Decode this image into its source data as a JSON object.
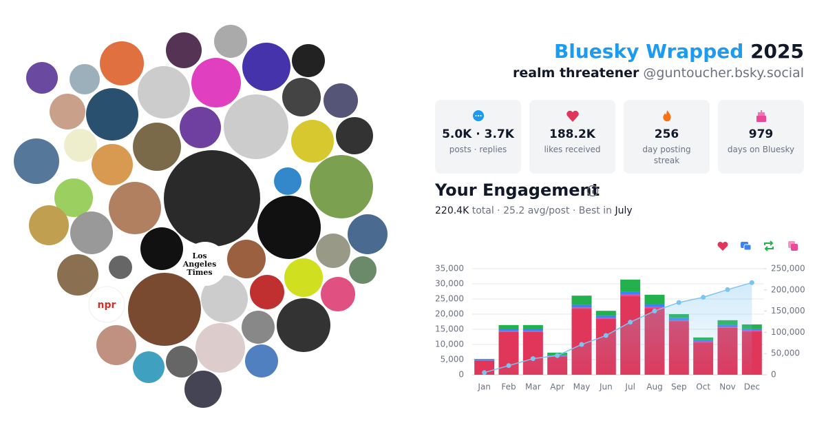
{
  "header": {
    "title": "Bluesky Wrapped",
    "year": "2025",
    "display_name": "realm threatener",
    "handle": "@guntoucher.bsky.social"
  },
  "avatars": {
    "logos": [
      "npr",
      "Los",
      "Angeles",
      "Times"
    ]
  },
  "stats": [
    {
      "value": "5.0K · 3.7K",
      "label": "posts · replies"
    },
    {
      "value": "188.2K",
      "label": "likes received"
    },
    {
      "value": "256",
      "label": "day posting streak"
    },
    {
      "value": "979",
      "label": "days on Bluesky"
    }
  ],
  "engagement": {
    "title": "Your Engagement",
    "total": "220.4K",
    "summary": "total · 25.2 avg/post · Best in",
    "best_month": "July"
  },
  "chart_data": {
    "type": "bar",
    "stacked": true,
    "categories": [
      "Jan",
      "Feb",
      "Mar",
      "Apr",
      "May",
      "Jun",
      "Jul",
      "Aug",
      "Sep",
      "Oct",
      "Nov",
      "Dec"
    ],
    "series": [
      {
        "color": "#e0365a",
        "values": [
          4700,
          14100,
          14100,
          6100,
          21800,
          18400,
          25900,
          22000,
          17700,
          10700,
          15500,
          14300
        ]
      },
      {
        "color": "#ec4899",
        "values": [
          100,
          300,
          300,
          100,
          400,
          300,
          500,
          400,
          300,
          200,
          300,
          300
        ]
      },
      {
        "color": "#3b82f6",
        "values": [
          200,
          600,
          600,
          300,
          900,
          800,
          1000,
          1000,
          700,
          500,
          700,
          600
        ]
      },
      {
        "color": "#22b14c",
        "values": [
          200,
          1400,
          1400,
          800,
          3000,
          1600,
          4000,
          3000,
          1300,
          900,
          1500,
          1400
        ]
      },
      {
        "type": "area",
        "axis": "y2",
        "color": "#7cc4f0",
        "values": [
          5200,
          21600,
          38000,
          45300,
          71400,
          92500,
          123900,
          150300,
          170300,
          182600,
          200600,
          217200
        ]
      }
    ],
    "ylim": [
      0,
      35000
    ],
    "yticks": [
      0,
      {
        "value": 5000,
        "label": "5,000"
      },
      {
        "value": 10000,
        "label": "10,000"
      },
      {
        "value": 15000,
        "label": "15,000"
      },
      {
        "value": 20000,
        "label": "20,000"
      },
      {
        "value": 25000,
        "label": "25,000"
      },
      {
        "value": 30000,
        "label": "30,000"
      },
      {
        "value": 35000,
        "label": "35,000"
      }
    ],
    "y2lim": [
      0,
      250000
    ],
    "y2ticks": [
      0,
      {
        "value": 50000,
        "label": "50,000"
      },
      {
        "value": 100000,
        "label": "100,000"
      },
      {
        "value": 150000,
        "label": "150,000"
      },
      {
        "value": 200000,
        "label": "200,000"
      },
      {
        "value": 250000,
        "label": "250,000"
      }
    ],
    "grid": true
  }
}
